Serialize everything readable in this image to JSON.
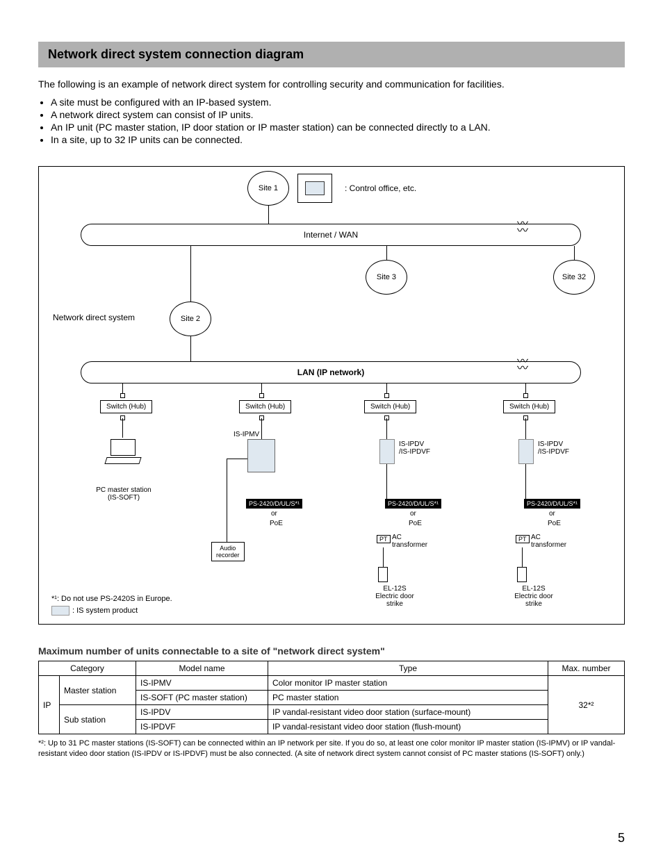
{
  "header": "Network direct system connection diagram",
  "intro": "The following is an example of network direct system for controlling security and communication for facilities.",
  "bullets": [
    "A site must be configured with an IP-based system.",
    "A network direct system can consist of IP units.",
    "An IP unit (PC master station, IP door station or IP master station) can be connected directly to a LAN.",
    "In a site, up to 32 IP units can be connected."
  ],
  "diagram": {
    "site1": "Site 1",
    "control_office": ": Control office, etc.",
    "wan": "Internet / WAN",
    "site2": "Site 2",
    "site3": "Site 3",
    "site32": "Site 32",
    "nds_label": "Network direct system",
    "lan": "LAN (IP network)",
    "switch": "Switch (Hub)",
    "ipmv": "IS-IPMV",
    "pcms": "PC master station\n(IS-SOFT)",
    "ps": "PS-2420/D/UL/S*¹",
    "or": "or",
    "poe": "PoE",
    "audio": "Audio\nrecorder",
    "ipdv": "IS-IPDV\n/IS-IPDVF",
    "pt": "PT",
    "ac": "AC\ntransformer",
    "el12s": "EL-12S\nElectric door strike",
    "note1": "*¹: Do not use PS-2420S in Europe.",
    "legend_is": ": IS system product"
  },
  "table_title": "Maximum number of units connectable to a site of \"network direct system\"",
  "table": {
    "headers": [
      "Category",
      "Model name",
      "Type",
      "Max. number"
    ],
    "cat": "IP",
    "master": "Master station",
    "sub": "Sub station",
    "rows": [
      {
        "model": "IS-IPMV",
        "type": "Color monitor IP master station"
      },
      {
        "model": "IS-SOFT (PC master station)",
        "type": "PC master station"
      },
      {
        "model": "IS-IPDV",
        "type": "IP vandal-resistant video door station (surface-mount)"
      },
      {
        "model": "IS-IPDVF",
        "type": "IP vandal-resistant video door station (flush-mount)"
      }
    ],
    "max": "32*²"
  },
  "footnote": "*²: Up to 31 PC master stations (IS-SOFT) can be connected within an IP network per site. If you do so, at least one color monitor IP master station (IS-IPMV) or IP vandal-resistant video door station (IS-IPDV or IS-IPDVF) must be also connected. (A site of network direct system cannot consist of PC master stations (IS-SOFT) only.)",
  "page": "5",
  "colors": {
    "header_bg": "#b0b0b0",
    "is_product": "#dfe8f0"
  }
}
